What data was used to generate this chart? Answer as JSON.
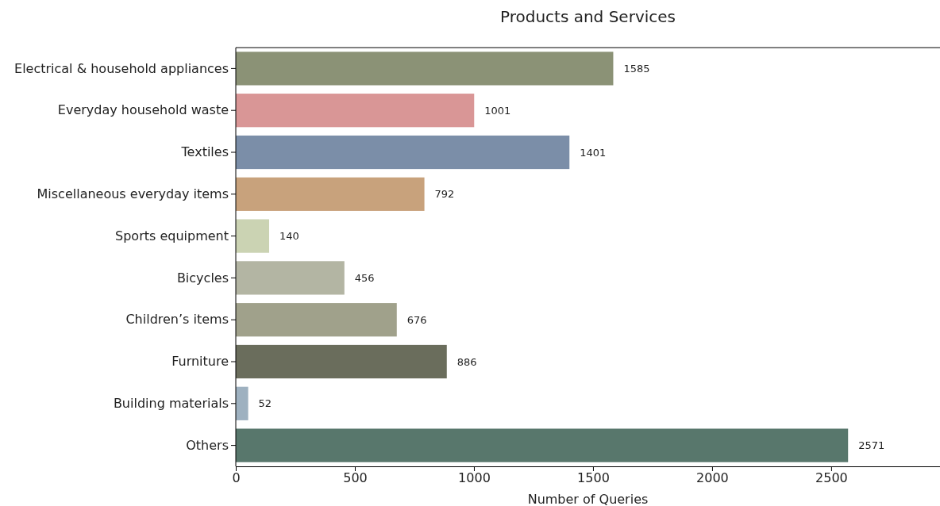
{
  "chart_data": {
    "type": "bar",
    "orientation": "horizontal",
    "title": "Products and Services",
    "xlabel": "Number of Queries",
    "categories": [
      "Electrical & household appliances",
      "Everyday household waste",
      "Textiles",
      "Miscellaneous everyday items",
      "Sports equipment",
      "Bicycles",
      "Children’s items",
      "Furniture",
      "Building materials",
      "Others"
    ],
    "values": [
      1585,
      1001,
      1401,
      792,
      140,
      456,
      676,
      886,
      52,
      2571
    ],
    "colors": [
      "#8b9276",
      "#d99696",
      "#7b8ea8",
      "#c8a27c",
      "#cbd3b3",
      "#b3b5a3",
      "#a0a18b",
      "#6a6d5c",
      "#9eb1c0",
      "#58776c"
    ],
    "xlim": [
      0,
      2957
    ],
    "xticks": [
      0,
      500,
      1000,
      1500,
      2000,
      2500
    ],
    "data_labels": true,
    "grid": false
  }
}
